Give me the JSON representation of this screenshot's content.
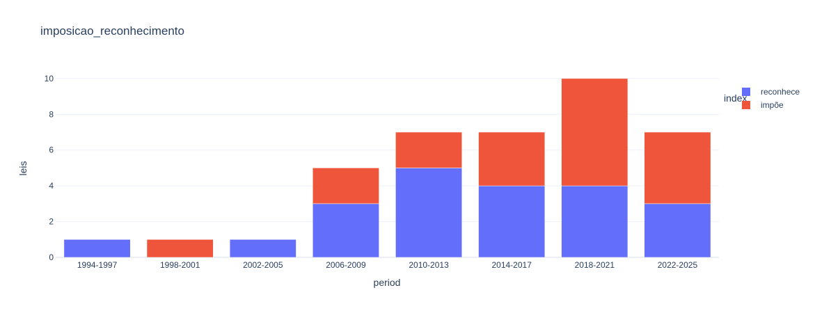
{
  "chart_data": {
    "type": "bar",
    "barmode": "stack",
    "title": "imposicao_reconhecimento",
    "xlabel": "period",
    "ylabel": "leis",
    "categories": [
      "1994-1997",
      "1998-2001",
      "2002-2005",
      "2006-2009",
      "2010-2013",
      "2014-2017",
      "2018-2021",
      "2022-2025"
    ],
    "series": [
      {
        "name": "reconhece",
        "color": "#636efa",
        "values": [
          1,
          0,
          1,
          3,
          5,
          4,
          4,
          3
        ]
      },
      {
        "name": "impõe",
        "color": "#ef553b",
        "values": [
          0,
          1,
          0,
          2,
          2,
          3,
          6,
          4
        ]
      }
    ],
    "ylim": [
      0,
      10.5
    ],
    "yticks": [
      0,
      2,
      4,
      6,
      8,
      10
    ],
    "grid": true,
    "legend": {
      "title": "index",
      "placement": "right"
    }
  }
}
